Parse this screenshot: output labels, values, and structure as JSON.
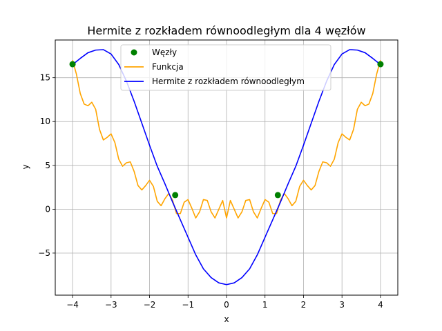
{
  "chart_data": {
    "type": "line",
    "title": "Hermite z rozkładem równoodległym dla 4 węzłów",
    "xlabel": "x",
    "ylabel": "y",
    "xlim": [
      -4.45,
      4.45
    ],
    "ylim": [
      -9.8,
      19.3
    ],
    "xticks": [
      -4,
      -3,
      -2,
      -1,
      0,
      1,
      2,
      3,
      4
    ],
    "yticks": [
      -5,
      0,
      5,
      10,
      15
    ],
    "ytick_labels": [
      "−5",
      "0",
      "5",
      "10",
      "15"
    ],
    "xtick_labels": [
      "−4",
      "−3",
      "−2",
      "−1",
      "0",
      "1",
      "2",
      "3",
      "4"
    ],
    "grid": true,
    "legend_position": "top-center",
    "series": [
      {
        "name": "Węzły",
        "kind": "scatter",
        "color": "#008000",
        "x": [
          -4.0,
          -1.3333,
          1.3333,
          4.0
        ],
        "y": [
          16.54,
          1.61,
          1.61,
          16.54
        ]
      },
      {
        "name": "Funkcja",
        "kind": "line",
        "color": "#FFA500",
        "x": [
          -4.0,
          -3.9,
          -3.8,
          -3.7,
          -3.6,
          -3.5,
          -3.4,
          -3.3,
          -3.2,
          -3.1,
          -3.0,
          -2.9,
          -2.8,
          -2.7,
          -2.6,
          -2.5,
          -2.4,
          -2.3,
          -2.2,
          -2.1,
          -2.0,
          -1.9,
          -1.8,
          -1.7,
          -1.6,
          -1.5,
          -1.4,
          -1.3,
          -1.2,
          -1.1,
          -1.0,
          -0.9,
          -0.8,
          -0.7,
          -0.6,
          -0.5,
          -0.4,
          -0.3,
          -0.2,
          -0.1,
          0.0,
          0.1,
          0.2,
          0.3,
          0.4,
          0.5,
          0.6,
          0.7,
          0.8,
          0.9,
          1.0,
          1.1,
          1.2,
          1.3,
          1.4,
          1.5,
          1.6,
          1.7,
          1.8,
          1.9,
          2.0,
          2.1,
          2.2,
          2.3,
          2.4,
          2.5,
          2.6,
          2.7,
          2.8,
          2.9,
          3.0,
          3.1,
          3.2,
          3.3,
          3.4,
          3.5,
          3.6,
          3.7,
          3.8,
          3.9,
          4.0
        ],
        "y": [
          17.0,
          15.4,
          13.2,
          12.0,
          11.8,
          12.2,
          11.4,
          9.1,
          7.9,
          8.2,
          8.6,
          7.6,
          5.7,
          4.9,
          5.3,
          5.4,
          4.3,
          2.7,
          2.2,
          2.7,
          3.3,
          2.6,
          0.9,
          0.4,
          1.2,
          1.8,
          1.0,
          -0.5,
          -0.5,
          0.8,
          1.1,
          0.1,
          -1.0,
          -0.3,
          1.1,
          1.0,
          -0.3,
          -1.0,
          0.0,
          1.0,
          -1.0,
          1.0,
          0.0,
          -1.0,
          -0.3,
          1.0,
          1.1,
          -0.3,
          -1.0,
          0.1,
          1.1,
          0.8,
          -0.5,
          -0.5,
          1.0,
          1.8,
          1.2,
          0.4,
          0.9,
          2.6,
          3.3,
          2.7,
          2.2,
          2.7,
          4.3,
          5.4,
          5.3,
          4.9,
          5.7,
          7.6,
          8.6,
          8.2,
          7.9,
          9.1,
          11.4,
          12.2,
          11.8,
          12.0,
          13.2,
          15.4,
          17.0
        ]
      },
      {
        "name": "Hermite z rozkładem równoodległym",
        "kind": "line",
        "color": "#0000FF",
        "x": [
          -4.0,
          -3.8,
          -3.6,
          -3.4,
          -3.2,
          -3.0,
          -2.8,
          -2.6,
          -2.4,
          -2.2,
          -2.0,
          -1.8,
          -1.6,
          -1.4,
          -1.2,
          -1.0,
          -0.8,
          -0.6,
          -0.4,
          -0.2,
          0.0,
          0.2,
          0.4,
          0.6,
          0.8,
          1.0,
          1.2,
          1.4,
          1.6,
          1.8,
          2.0,
          2.2,
          2.4,
          2.6,
          2.8,
          3.0,
          3.2,
          3.4,
          3.6,
          3.8,
          4.0
        ],
        "y": [
          16.5,
          17.2,
          17.85,
          18.15,
          18.2,
          17.7,
          16.5,
          14.6,
          12.3,
          9.8,
          7.3,
          4.9,
          2.9,
          0.8,
          -1.2,
          -3.2,
          -5.2,
          -6.8,
          -7.8,
          -8.4,
          -8.6,
          -8.4,
          -7.8,
          -6.8,
          -5.2,
          -3.2,
          -1.2,
          0.8,
          2.9,
          4.9,
          7.3,
          9.8,
          12.3,
          14.6,
          16.5,
          17.7,
          18.2,
          18.15,
          17.85,
          17.2,
          16.5
        ]
      }
    ]
  }
}
